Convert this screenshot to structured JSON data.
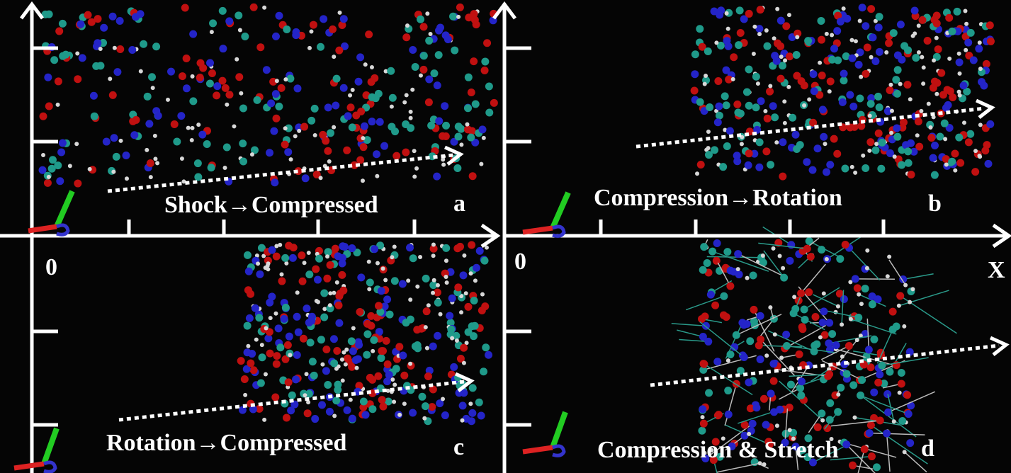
{
  "panels": [
    {
      "caption": "Shock→Compressed",
      "letter": "a"
    },
    {
      "caption": "Compression→Rotation",
      "letter": "b"
    },
    {
      "caption": "Rotation→Compressed",
      "letter": "c"
    },
    {
      "caption": "Compression & Stretch",
      "letter": "d"
    }
  ],
  "axes": {
    "origin_left": "0",
    "origin_right": "0",
    "x_label": "X"
  }
}
